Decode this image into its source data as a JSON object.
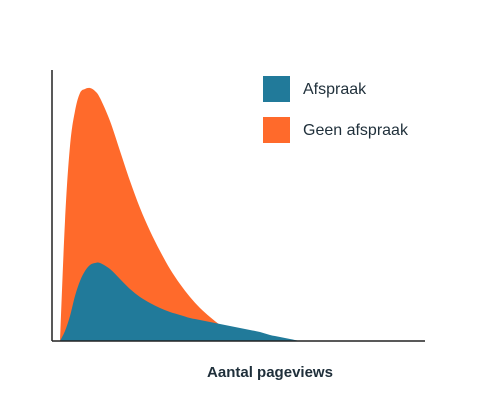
{
  "chart_data": {
    "type": "area",
    "xlabel": "Aantal pageviews",
    "x": [
      8,
      13,
      18,
      23,
      28,
      33,
      38,
      43,
      48,
      58,
      68,
      78,
      88,
      98,
      108,
      118,
      128,
      138,
      148,
      158,
      168,
      178,
      188,
      198,
      208,
      218,
      228,
      238,
      248
    ],
    "series": [
      {
        "name": "Afspraak",
        "color": "#217a9a",
        "values": [
          0,
          10,
          25,
          45,
          60,
          70,
          76,
          78,
          78,
          72,
          62,
          52,
          44,
          38,
          33,
          29,
          26,
          23,
          21,
          19,
          17,
          15,
          13,
          11,
          9,
          6,
          4,
          2,
          0
        ]
      },
      {
        "name": "Geen afspraak",
        "color": "#ff6a2b",
        "values": [
          0,
          120,
          195,
          230,
          248,
          252,
          253,
          250,
          243,
          220,
          190,
          160,
          133,
          110,
          90,
          72,
          57,
          44,
          33,
          24,
          16,
          9,
          4,
          1,
          0,
          0,
          0,
          0,
          0
        ]
      }
    ],
    "xlim": [
      0,
      373
    ],
    "ylim": [
      0,
      270
    ],
    "legend": "upper right"
  }
}
